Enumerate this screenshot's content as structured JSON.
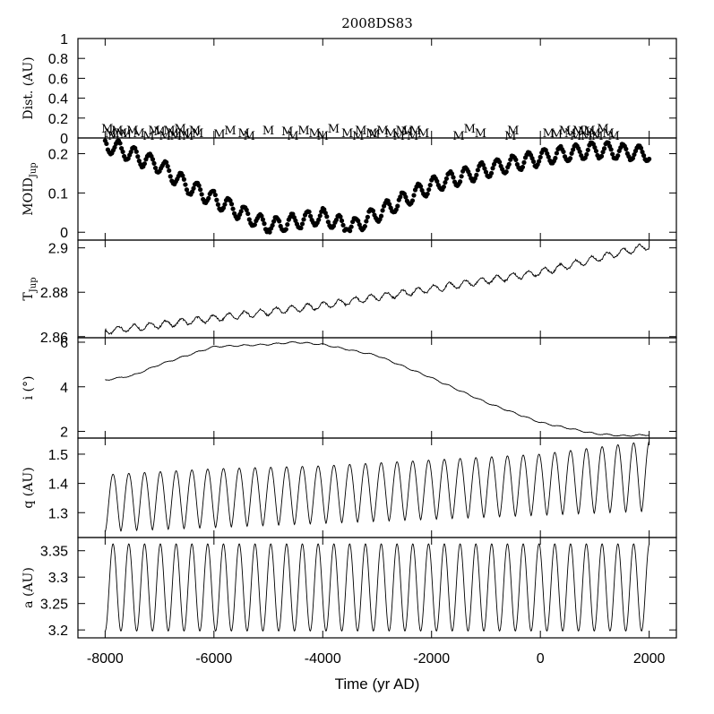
{
  "chart_data": {
    "type": "line",
    "title": "2008DS83",
    "xlabel": "Time (yr AD)",
    "xlim": [
      -8500,
      2500
    ],
    "x_ticks": [
      -8000,
      -6000,
      -4000,
      -2000,
      0,
      2000
    ],
    "x_tick_labels": [
      "-8000",
      "-6000",
      "-4000",
      "-2000",
      "0",
      "2000"
    ],
    "panels": [
      {
        "key": "dist",
        "ylabel": "Dist. (AU)",
        "ylim": [
          0,
          1
        ],
        "y_ticks": [
          0,
          0.2,
          0.4,
          0.6,
          0.8,
          1
        ],
        "y_tick_labels": [
          "0",
          "0.2",
          "0.4",
          "0.6",
          "0.8",
          "1"
        ],
        "type": "marker-labels",
        "marker_label": "M",
        "series": [
          {
            "x": [
              -7960,
              -7900,
              -7840,
              -7780,
              -7700,
              -7620,
              -7500,
              -7380,
              -7200,
              -7100,
              -7000,
              -6900,
              -6820,
              -6750,
              -6700,
              -6620,
              -6550,
              -6480,
              -6350,
              -6300,
              -5900,
              -5700,
              -5450,
              -5350,
              -5000,
              -4650,
              -4550,
              -4350,
              -4150,
              -4000,
              -3800,
              -3550,
              -3350,
              -3300,
              -3100,
              -3050,
              -2900,
              -2750,
              -2600,
              -2550,
              -2450,
              -2350,
              -2300,
              -2150,
              -1500,
              -1300,
              -1100,
              -550,
              -500,
              150,
              300,
              450,
              550,
              650,
              700,
              800,
              850,
              900,
              1000,
              1050,
              1150,
              1250,
              1350
            ]
          }
        ]
      },
      {
        "key": "moid",
        "ylabel": "MOID",
        "ylabel_sub": "Jup",
        "ylim": [
          -0.02,
          0.24
        ],
        "y_ticks": [
          0,
          0.1,
          0.2
        ],
        "y_tick_labels": [
          "0",
          "0.1",
          "0.2"
        ],
        "type": "scatter",
        "trend_points": [
          [
            -8000,
            0.225
          ],
          [
            -7000,
            0.17
          ],
          [
            -6500,
            0.12
          ],
          [
            -5000,
            0.015
          ],
          [
            -4000,
            0.04
          ],
          [
            -3500,
            0.01
          ],
          [
            -2000,
            0.12
          ],
          [
            -1000,
            0.16
          ],
          [
            0,
            0.19
          ],
          [
            1000,
            0.21
          ],
          [
            2000,
            0.2
          ]
        ],
        "oscillation": {
          "period_yr": 290,
          "amplitude": 0.02
        }
      },
      {
        "key": "tjup",
        "ylabel": "T",
        "ylabel_sub": "Jup",
        "ylim": [
          2.8595,
          2.9035
        ],
        "y_ticks": [
          2.86,
          2.88,
          2.9
        ],
        "y_tick_labels": [
          "2.86",
          "2.88",
          "2.9"
        ],
        "type": "line",
        "trend_points": [
          [
            -8000,
            2.8625
          ],
          [
            -4000,
            2.874
          ],
          [
            0,
            2.889
          ],
          [
            2000,
            2.901
          ]
        ],
        "oscillation": {
          "period_yr": 290,
          "amplitude": 0.0015
        }
      },
      {
        "key": "incl",
        "ylabel": "i (°)",
        "ylim": [
          1.7,
          6.2
        ],
        "y_ticks": [
          2,
          4,
          6
        ],
        "y_tick_labels": [
          "2",
          "4",
          "6"
        ],
        "type": "line",
        "trend_points": [
          [
            -8000,
            4.3
          ],
          [
            -7500,
            4.5
          ],
          [
            -7000,
            5.0
          ],
          [
            -6500,
            5.4
          ],
          [
            -6000,
            5.8
          ],
          [
            -5000,
            5.9
          ],
          [
            -4500,
            6.0
          ],
          [
            -4000,
            5.9
          ],
          [
            -3000,
            5.4
          ],
          [
            -2000,
            4.4
          ],
          [
            -1000,
            3.3
          ],
          [
            0,
            2.4
          ],
          [
            1000,
            1.9
          ],
          [
            1500,
            1.8
          ],
          [
            2000,
            1.85
          ]
        ],
        "oscillation": {
          "period_yr": 290,
          "amplitude": 0.03
        }
      },
      {
        "key": "q",
        "ylabel": "q (AU)",
        "ylim": [
          1.215,
          1.555
        ],
        "y_ticks": [
          1.3,
          1.4,
          1.5
        ],
        "y_tick_labels": [
          "1.3",
          "1.4",
          "1.5"
        ],
        "type": "line",
        "min_points": [
          [
            -8000,
            1.235
          ],
          [
            2000,
            1.305
          ]
        ],
        "max_points": [
          [
            -8000,
            1.43
          ],
          [
            -6000,
            1.45
          ],
          [
            -4000,
            1.46
          ],
          [
            -2000,
            1.48
          ],
          [
            0,
            1.5
          ],
          [
            2000,
            1.545
          ]
        ],
        "period_yr": 290
      },
      {
        "key": "a",
        "ylabel": "a (AU)",
        "ylim": [
          3.185,
          3.375
        ],
        "y_ticks": [
          3.2,
          3.25,
          3.3,
          3.35
        ],
        "y_tick_labels": [
          "3.2",
          "3.25",
          "3.3",
          "3.35"
        ],
        "type": "line",
        "min_value": 3.198,
        "max_value": 3.363,
        "period_yr": 290
      }
    ]
  }
}
